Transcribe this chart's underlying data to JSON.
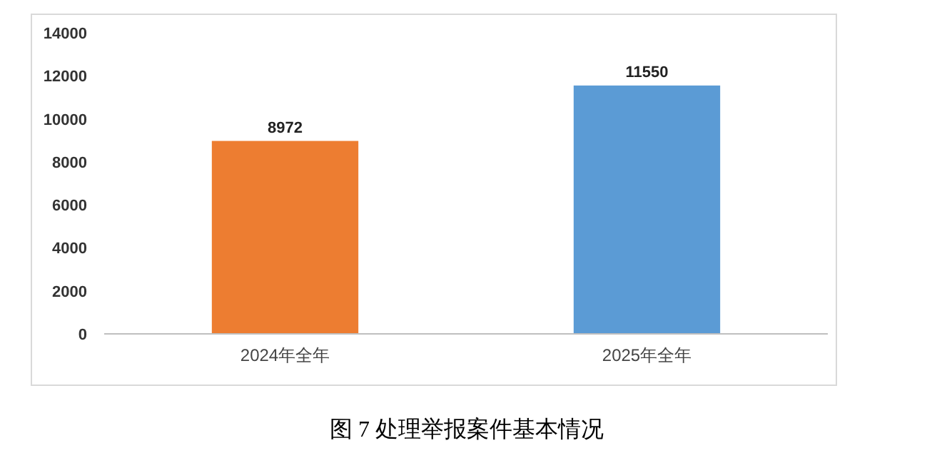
{
  "chart_data": {
    "type": "bar",
    "title": "图 7  处理举报案件基本情况",
    "categories": [
      "2024年全年",
      "2025年全年"
    ],
    "values": [
      8972,
      11550
    ],
    "colors": [
      "#ed7d31",
      "#5b9bd5"
    ],
    "ylim": [
      0,
      14000
    ],
    "yticks": [
      0,
      2000,
      4000,
      6000,
      8000,
      10000,
      12000,
      14000
    ],
    "data_labels": true
  }
}
